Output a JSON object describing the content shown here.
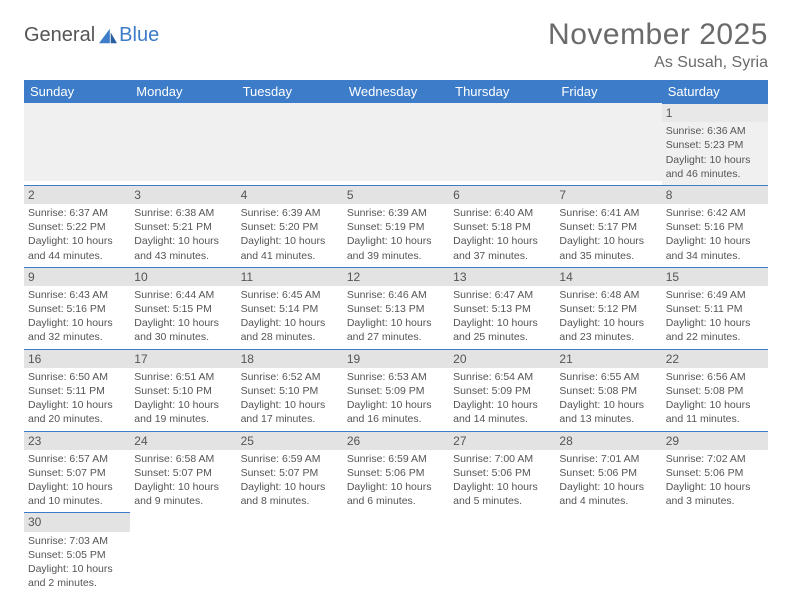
{
  "logo": {
    "part1": "General",
    "part2": "Blue"
  },
  "title": "November 2025",
  "location": "As Susah, Syria",
  "colors": {
    "header_bg": "#3d7cc9",
    "header_text": "#ffffff",
    "band_bg": "#e3e3e3",
    "row1_bg": "#f0f0f0",
    "border": "#3d7cc9",
    "body_text": "#555555",
    "logo_blue": "#3d7cc9"
  },
  "day_labels": [
    "Sunday",
    "Monday",
    "Tuesday",
    "Wednesday",
    "Thursday",
    "Friday",
    "Saturday"
  ],
  "leading_blanks": 6,
  "days": [
    {
      "n": "1",
      "sr": "Sunrise: 6:36 AM",
      "ss": "Sunset: 5:23 PM",
      "dl1": "Daylight: 10 hours",
      "dl2": "and 46 minutes."
    },
    {
      "n": "2",
      "sr": "Sunrise: 6:37 AM",
      "ss": "Sunset: 5:22 PM",
      "dl1": "Daylight: 10 hours",
      "dl2": "and 44 minutes."
    },
    {
      "n": "3",
      "sr": "Sunrise: 6:38 AM",
      "ss": "Sunset: 5:21 PM",
      "dl1": "Daylight: 10 hours",
      "dl2": "and 43 minutes."
    },
    {
      "n": "4",
      "sr": "Sunrise: 6:39 AM",
      "ss": "Sunset: 5:20 PM",
      "dl1": "Daylight: 10 hours",
      "dl2": "and 41 minutes."
    },
    {
      "n": "5",
      "sr": "Sunrise: 6:39 AM",
      "ss": "Sunset: 5:19 PM",
      "dl1": "Daylight: 10 hours",
      "dl2": "and 39 minutes."
    },
    {
      "n": "6",
      "sr": "Sunrise: 6:40 AM",
      "ss": "Sunset: 5:18 PM",
      "dl1": "Daylight: 10 hours",
      "dl2": "and 37 minutes."
    },
    {
      "n": "7",
      "sr": "Sunrise: 6:41 AM",
      "ss": "Sunset: 5:17 PM",
      "dl1": "Daylight: 10 hours",
      "dl2": "and 35 minutes."
    },
    {
      "n": "8",
      "sr": "Sunrise: 6:42 AM",
      "ss": "Sunset: 5:16 PM",
      "dl1": "Daylight: 10 hours",
      "dl2": "and 34 minutes."
    },
    {
      "n": "9",
      "sr": "Sunrise: 6:43 AM",
      "ss": "Sunset: 5:16 PM",
      "dl1": "Daylight: 10 hours",
      "dl2": "and 32 minutes."
    },
    {
      "n": "10",
      "sr": "Sunrise: 6:44 AM",
      "ss": "Sunset: 5:15 PM",
      "dl1": "Daylight: 10 hours",
      "dl2": "and 30 minutes."
    },
    {
      "n": "11",
      "sr": "Sunrise: 6:45 AM",
      "ss": "Sunset: 5:14 PM",
      "dl1": "Daylight: 10 hours",
      "dl2": "and 28 minutes."
    },
    {
      "n": "12",
      "sr": "Sunrise: 6:46 AM",
      "ss": "Sunset: 5:13 PM",
      "dl1": "Daylight: 10 hours",
      "dl2": "and 27 minutes."
    },
    {
      "n": "13",
      "sr": "Sunrise: 6:47 AM",
      "ss": "Sunset: 5:13 PM",
      "dl1": "Daylight: 10 hours",
      "dl2": "and 25 minutes."
    },
    {
      "n": "14",
      "sr": "Sunrise: 6:48 AM",
      "ss": "Sunset: 5:12 PM",
      "dl1": "Daylight: 10 hours",
      "dl2": "and 23 minutes."
    },
    {
      "n": "15",
      "sr": "Sunrise: 6:49 AM",
      "ss": "Sunset: 5:11 PM",
      "dl1": "Daylight: 10 hours",
      "dl2": "and 22 minutes."
    },
    {
      "n": "16",
      "sr": "Sunrise: 6:50 AM",
      "ss": "Sunset: 5:11 PM",
      "dl1": "Daylight: 10 hours",
      "dl2": "and 20 minutes."
    },
    {
      "n": "17",
      "sr": "Sunrise: 6:51 AM",
      "ss": "Sunset: 5:10 PM",
      "dl1": "Daylight: 10 hours",
      "dl2": "and 19 minutes."
    },
    {
      "n": "18",
      "sr": "Sunrise: 6:52 AM",
      "ss": "Sunset: 5:10 PM",
      "dl1": "Daylight: 10 hours",
      "dl2": "and 17 minutes."
    },
    {
      "n": "19",
      "sr": "Sunrise: 6:53 AM",
      "ss": "Sunset: 5:09 PM",
      "dl1": "Daylight: 10 hours",
      "dl2": "and 16 minutes."
    },
    {
      "n": "20",
      "sr": "Sunrise: 6:54 AM",
      "ss": "Sunset: 5:09 PM",
      "dl1": "Daylight: 10 hours",
      "dl2": "and 14 minutes."
    },
    {
      "n": "21",
      "sr": "Sunrise: 6:55 AM",
      "ss": "Sunset: 5:08 PM",
      "dl1": "Daylight: 10 hours",
      "dl2": "and 13 minutes."
    },
    {
      "n": "22",
      "sr": "Sunrise: 6:56 AM",
      "ss": "Sunset: 5:08 PM",
      "dl1": "Daylight: 10 hours",
      "dl2": "and 11 minutes."
    },
    {
      "n": "23",
      "sr": "Sunrise: 6:57 AM",
      "ss": "Sunset: 5:07 PM",
      "dl1": "Daylight: 10 hours",
      "dl2": "and 10 minutes."
    },
    {
      "n": "24",
      "sr": "Sunrise: 6:58 AM",
      "ss": "Sunset: 5:07 PM",
      "dl1": "Daylight: 10 hours",
      "dl2": "and 9 minutes."
    },
    {
      "n": "25",
      "sr": "Sunrise: 6:59 AM",
      "ss": "Sunset: 5:07 PM",
      "dl1": "Daylight: 10 hours",
      "dl2": "and 8 minutes."
    },
    {
      "n": "26",
      "sr": "Sunrise: 6:59 AM",
      "ss": "Sunset: 5:06 PM",
      "dl1": "Daylight: 10 hours",
      "dl2": "and 6 minutes."
    },
    {
      "n": "27",
      "sr": "Sunrise: 7:00 AM",
      "ss": "Sunset: 5:06 PM",
      "dl1": "Daylight: 10 hours",
      "dl2": "and 5 minutes."
    },
    {
      "n": "28",
      "sr": "Sunrise: 7:01 AM",
      "ss": "Sunset: 5:06 PM",
      "dl1": "Daylight: 10 hours",
      "dl2": "and 4 minutes."
    },
    {
      "n": "29",
      "sr": "Sunrise: 7:02 AM",
      "ss": "Sunset: 5:06 PM",
      "dl1": "Daylight: 10 hours",
      "dl2": "and 3 minutes."
    },
    {
      "n": "30",
      "sr": "Sunrise: 7:03 AM",
      "ss": "Sunset: 5:05 PM",
      "dl1": "Daylight: 10 hours",
      "dl2": "and 2 minutes."
    }
  ]
}
